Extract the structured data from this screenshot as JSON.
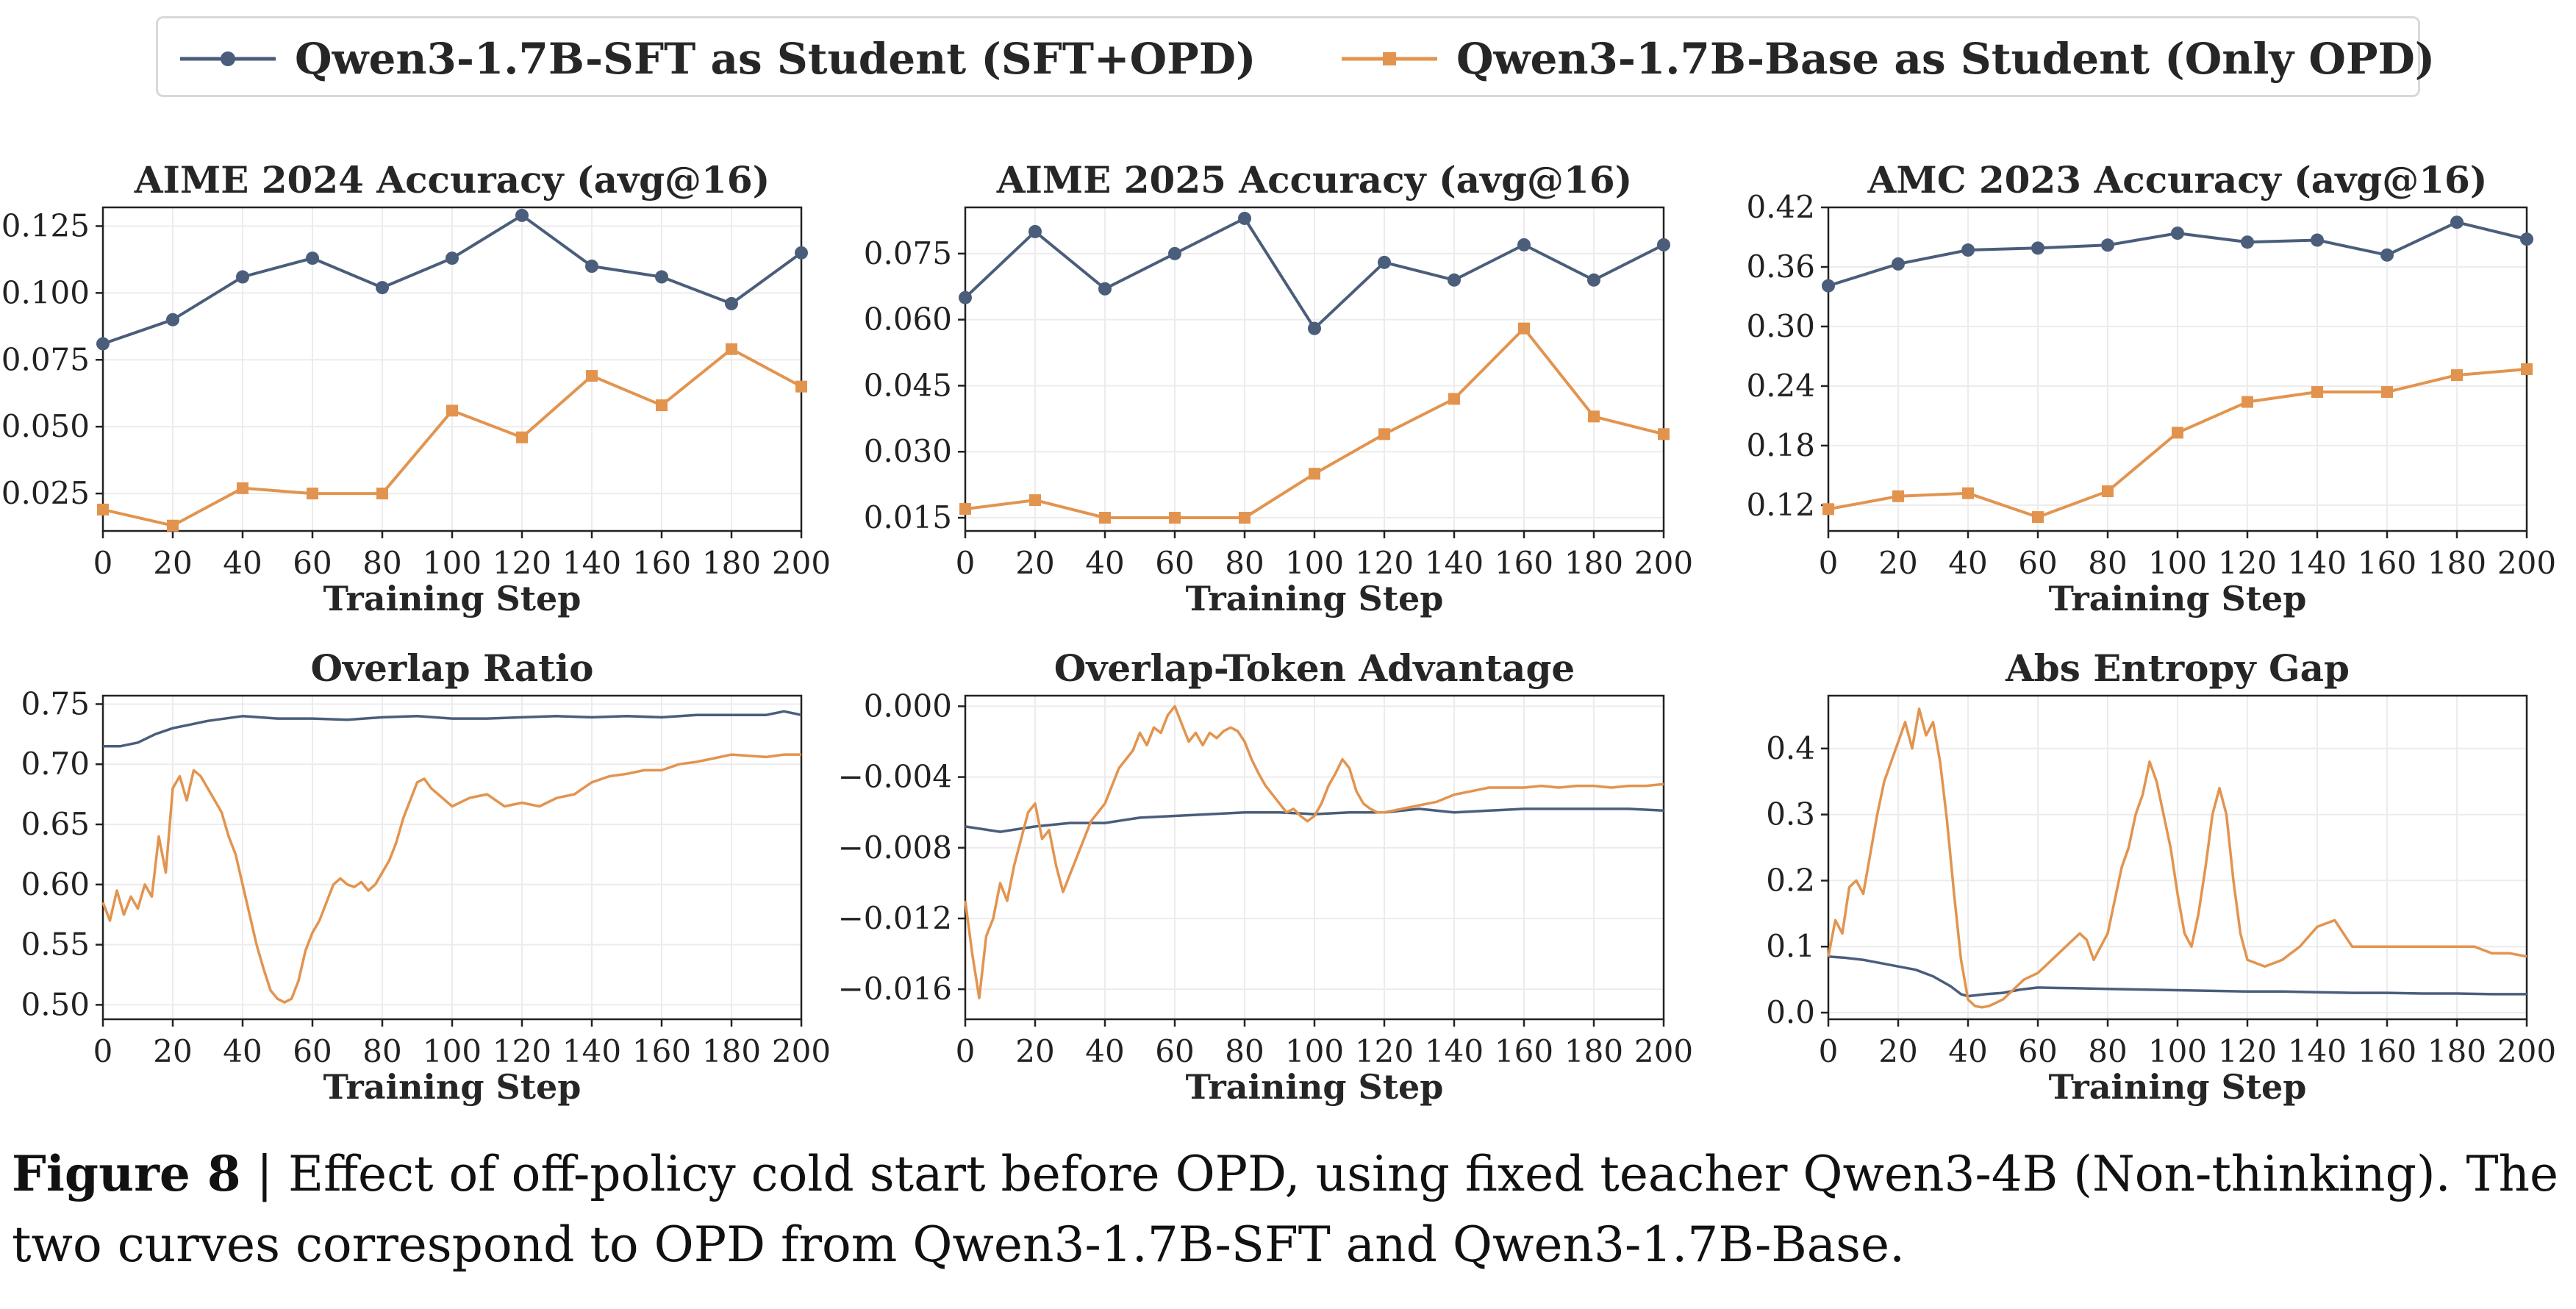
{
  "legend": {
    "sft_label": "Qwen3-1.7B-SFT as Student (SFT+OPD)",
    "base_label": "Qwen3-1.7B-Base as Student (Only OPD)"
  },
  "colors": {
    "sft": "#4a5e7b",
    "base": "#e2944f",
    "grid": "#ececec",
    "axis": "#222222"
  },
  "caption": {
    "label": "Figure 8",
    "separator": " | ",
    "text": "Effect of off-policy cold start before OPD, using fixed teacher Qwen3-4B (Non-thinking). The two curves correspond to OPD from Qwen3-1.7B-SFT and Qwen3-1.7B-Base."
  },
  "chart_data": [
    {
      "id": "aime2024",
      "type": "line",
      "title": "AIME 2024 Accuracy (avg@16)",
      "xlabel": "Training Step",
      "ylabel": "",
      "xlim": [
        0,
        200
      ],
      "ylim": [
        0.011,
        0.132
      ],
      "xticks": [
        0,
        20,
        40,
        60,
        80,
        100,
        120,
        140,
        160,
        180,
        200
      ],
      "yticks": [
        0.025,
        0.05,
        0.075,
        0.1,
        0.125
      ],
      "ytick_labels": [
        "0.025",
        "0.050",
        "0.075",
        "0.100",
        "0.125"
      ],
      "x": [
        0,
        20,
        40,
        60,
        80,
        100,
        120,
        140,
        160,
        180,
        200
      ],
      "series": [
        {
          "name": "Qwen3-1.7B-SFT as Student (SFT+OPD)",
          "key": "sft",
          "marker": "circle",
          "values": [
            0.081,
            0.09,
            0.106,
            0.113,
            0.102,
            0.113,
            0.129,
            0.11,
            0.106,
            0.096,
            0.115
          ]
        },
        {
          "name": "Qwen3-1.7B-Base as Student (Only OPD)",
          "key": "base",
          "marker": "square",
          "values": [
            0.019,
            0.013,
            0.027,
            0.025,
            0.025,
            0.056,
            0.046,
            0.069,
            0.058,
            0.079,
            0.065
          ]
        }
      ]
    },
    {
      "id": "aime2025",
      "type": "line",
      "title": "AIME 2025 Accuracy (avg@16)",
      "xlabel": "Training Step",
      "ylabel": "",
      "xlim": [
        0,
        200
      ],
      "ylim": [
        0.012,
        0.0855
      ],
      "xticks": [
        0,
        20,
        40,
        60,
        80,
        100,
        120,
        140,
        160,
        180,
        200
      ],
      "yticks": [
        0.015,
        0.03,
        0.045,
        0.06,
        0.075
      ],
      "ytick_labels": [
        "0.015",
        "0.030",
        "0.045",
        "0.060",
        "0.075"
      ],
      "x": [
        0,
        20,
        40,
        60,
        80,
        100,
        120,
        140,
        160,
        180,
        200
      ],
      "series": [
        {
          "name": "Qwen3-1.7B-SFT as Student (SFT+OPD)",
          "key": "sft",
          "marker": "circle",
          "values": [
            0.065,
            0.08,
            0.067,
            0.075,
            0.083,
            0.058,
            0.073,
            0.069,
            0.077,
            0.069,
            0.077
          ]
        },
        {
          "name": "Qwen3-1.7B-Base as Student (Only OPD)",
          "key": "base",
          "marker": "square",
          "values": [
            0.017,
            0.019,
            0.015,
            0.015,
            0.015,
            0.025,
            0.034,
            0.042,
            0.058,
            0.038,
            0.034
          ]
        }
      ]
    },
    {
      "id": "amc2023",
      "type": "line",
      "title": "AMC 2023 Accuracy (avg@16)",
      "xlabel": "Training Step",
      "ylabel": "",
      "xlim": [
        0,
        200
      ],
      "ylim": [
        0.094,
        0.42
      ],
      "xticks": [
        0,
        20,
        40,
        60,
        80,
        100,
        120,
        140,
        160,
        180,
        200
      ],
      "yticks": [
        0.12,
        0.18,
        0.24,
        0.3,
        0.36,
        0.42
      ],
      "ytick_labels": [
        "0.12",
        "0.18",
        "0.24",
        "0.30",
        "0.36",
        "0.42"
      ],
      "x": [
        0,
        20,
        40,
        60,
        80,
        100,
        120,
        140,
        160,
        180,
        200
      ],
      "series": [
        {
          "name": "Qwen3-1.7B-SFT as Student (SFT+OPD)",
          "key": "sft",
          "marker": "circle",
          "values": [
            0.341,
            0.363,
            0.377,
            0.379,
            0.382,
            0.394,
            0.385,
            0.387,
            0.372,
            0.405,
            0.388
          ]
        },
        {
          "name": "Qwen3-1.7B-Base as Student (Only OPD)",
          "key": "base",
          "marker": "square",
          "values": [
            0.116,
            0.129,
            0.132,
            0.108,
            0.134,
            0.193,
            0.224,
            0.234,
            0.234,
            0.251,
            0.257
          ]
        }
      ]
    },
    {
      "id": "overlap_ratio",
      "type": "line",
      "title": "Overlap Ratio",
      "xlabel": "Training Step",
      "ylabel": "",
      "xlim": [
        0,
        200
      ],
      "ylim": [
        0.488,
        0.757
      ],
      "xticks": [
        0,
        20,
        40,
        60,
        80,
        100,
        120,
        140,
        160,
        180,
        200
      ],
      "yticks": [
        0.5,
        0.55,
        0.6,
        0.65,
        0.7,
        0.75
      ],
      "ytick_labels": [
        "0.50",
        "0.55",
        "0.60",
        "0.65",
        "0.70",
        "0.75"
      ],
      "series": [
        {
          "name": "Qwen3-1.7B-SFT as Student (SFT+OPD)",
          "key": "sft",
          "x": [
            0,
            5,
            10,
            15,
            20,
            25,
            30,
            40,
            50,
            60,
            70,
            80,
            90,
            100,
            110,
            120,
            130,
            140,
            150,
            160,
            170,
            180,
            190,
            195,
            200
          ],
          "values": [
            0.715,
            0.715,
            0.718,
            0.725,
            0.73,
            0.733,
            0.736,
            0.74,
            0.738,
            0.738,
            0.737,
            0.739,
            0.74,
            0.738,
            0.738,
            0.739,
            0.74,
            0.739,
            0.74,
            0.739,
            0.741,
            0.741,
            0.741,
            0.744,
            0.741
          ]
        },
        {
          "name": "Qwen3-1.7B-Base as Student (Only OPD)",
          "key": "base",
          "x": [
            0,
            2,
            4,
            6,
            8,
            10,
            12,
            14,
            16,
            18,
            20,
            22,
            24,
            26,
            28,
            30,
            32,
            34,
            36,
            38,
            40,
            42,
            44,
            46,
            48,
            50,
            52,
            54,
            56,
            58,
            60,
            62,
            64,
            66,
            68,
            70,
            72,
            74,
            76,
            78,
            80,
            82,
            84,
            86,
            88,
            90,
            92,
            94,
            96,
            98,
            100,
            105,
            110,
            115,
            120,
            125,
            130,
            135,
            140,
            145,
            150,
            155,
            160,
            165,
            170,
            175,
            180,
            185,
            190,
            195,
            200
          ],
          "values": [
            0.585,
            0.57,
            0.595,
            0.575,
            0.59,
            0.58,
            0.6,
            0.59,
            0.64,
            0.61,
            0.68,
            0.69,
            0.67,
            0.695,
            0.69,
            0.68,
            0.67,
            0.66,
            0.64,
            0.625,
            0.6,
            0.575,
            0.55,
            0.53,
            0.512,
            0.505,
            0.502,
            0.505,
            0.52,
            0.545,
            0.56,
            0.57,
            0.585,
            0.6,
            0.605,
            0.6,
            0.598,
            0.602,
            0.595,
            0.6,
            0.61,
            0.62,
            0.635,
            0.655,
            0.67,
            0.685,
            0.688,
            0.68,
            0.675,
            0.67,
            0.665,
            0.672,
            0.675,
            0.665,
            0.668,
            0.665,
            0.672,
            0.675,
            0.685,
            0.69,
            0.692,
            0.695,
            0.695,
            0.7,
            0.702,
            0.705,
            0.708,
            0.707,
            0.706,
            0.708,
            0.708
          ]
        }
      ]
    },
    {
      "id": "overlap_token_advantage",
      "type": "line",
      "title": "Overlap-Token Advantage",
      "xlabel": "Training Step",
      "ylabel": "",
      "xlim": [
        0,
        200
      ],
      "ylim": [
        -0.0177,
        0.0006
      ],
      "xticks": [
        0,
        20,
        40,
        60,
        80,
        100,
        120,
        140,
        160,
        180,
        200
      ],
      "yticks": [
        -0.016,
        -0.012,
        -0.008,
        -0.004,
        0.0
      ],
      "ytick_labels": [
        "−0.016",
        "−0.012",
        "−0.008",
        "−0.004",
        "0.000"
      ],
      "series": [
        {
          "name": "Qwen3-1.7B-SFT as Student (SFT+OPD)",
          "key": "sft",
          "x": [
            0,
            10,
            20,
            30,
            40,
            50,
            60,
            70,
            80,
            90,
            100,
            110,
            120,
            130,
            140,
            150,
            160,
            170,
            180,
            190,
            200
          ],
          "values": [
            -0.0068,
            -0.0071,
            -0.0068,
            -0.0066,
            -0.0066,
            -0.0063,
            -0.0062,
            -0.0061,
            -0.006,
            -0.006,
            -0.0061,
            -0.006,
            -0.006,
            -0.0058,
            -0.006,
            -0.0059,
            -0.0058,
            -0.0058,
            -0.0058,
            -0.0058,
            -0.0059
          ]
        },
        {
          "name": "Qwen3-1.7B-Base as Student (Only OPD)",
          "key": "base",
          "x": [
            0,
            2,
            4,
            6,
            8,
            10,
            12,
            14,
            16,
            18,
            20,
            22,
            24,
            26,
            28,
            30,
            32,
            34,
            36,
            38,
            40,
            42,
            44,
            46,
            48,
            50,
            52,
            54,
            56,
            58,
            60,
            62,
            64,
            66,
            68,
            70,
            72,
            74,
            76,
            78,
            80,
            82,
            84,
            86,
            88,
            90,
            92,
            94,
            96,
            98,
            100,
            102,
            104,
            106,
            108,
            110,
            112,
            114,
            116,
            118,
            120,
            125,
            130,
            135,
            140,
            145,
            150,
            155,
            160,
            165,
            170,
            175,
            180,
            185,
            190,
            195,
            200
          ],
          "values": [
            -0.011,
            -0.014,
            -0.0165,
            -0.013,
            -0.012,
            -0.01,
            -0.011,
            -0.009,
            -0.0075,
            -0.006,
            -0.0055,
            -0.0075,
            -0.007,
            -0.009,
            -0.0105,
            -0.0095,
            -0.0085,
            -0.0075,
            -0.0065,
            -0.006,
            -0.0055,
            -0.0045,
            -0.0035,
            -0.003,
            -0.0025,
            -0.0015,
            -0.0022,
            -0.0012,
            -0.0015,
            -0.0005,
            0.0,
            -0.001,
            -0.002,
            -0.0015,
            -0.0022,
            -0.0015,
            -0.0018,
            -0.0014,
            -0.0012,
            -0.0014,
            -0.002,
            -0.003,
            -0.0038,
            -0.0045,
            -0.005,
            -0.0055,
            -0.006,
            -0.0058,
            -0.0062,
            -0.0065,
            -0.0062,
            -0.0055,
            -0.0045,
            -0.0038,
            -0.003,
            -0.0035,
            -0.0048,
            -0.0055,
            -0.0058,
            -0.006,
            -0.006,
            -0.0058,
            -0.0056,
            -0.0054,
            -0.005,
            -0.0048,
            -0.0046,
            -0.0046,
            -0.0046,
            -0.0045,
            -0.0046,
            -0.0045,
            -0.0045,
            -0.0046,
            -0.0045,
            -0.0045,
            -0.0044
          ]
        }
      ]
    },
    {
      "id": "abs_entropy_gap",
      "type": "line",
      "title": "Abs Entropy Gap",
      "xlabel": "Training Step",
      "ylabel": "",
      "xlim": [
        0,
        200
      ],
      "ylim": [
        -0.01,
        0.48
      ],
      "xticks": [
        0,
        20,
        40,
        60,
        80,
        100,
        120,
        140,
        160,
        180,
        200
      ],
      "yticks": [
        0.0,
        0.1,
        0.2,
        0.3,
        0.4
      ],
      "ytick_labels": [
        "0.0",
        "0.1",
        "0.2",
        "0.3",
        "0.4"
      ],
      "series": [
        {
          "name": "Qwen3-1.7B-SFT as Student (SFT+OPD)",
          "key": "sft",
          "x": [
            0,
            5,
            10,
            15,
            20,
            25,
            30,
            35,
            38,
            40,
            45,
            50,
            55,
            60,
            70,
            80,
            90,
            100,
            110,
            120,
            130,
            140,
            150,
            160,
            170,
            180,
            190,
            200
          ],
          "values": [
            0.085,
            0.083,
            0.08,
            0.075,
            0.07,
            0.065,
            0.055,
            0.04,
            0.028,
            0.025,
            0.028,
            0.03,
            0.035,
            0.038,
            0.037,
            0.036,
            0.035,
            0.034,
            0.033,
            0.032,
            0.032,
            0.031,
            0.03,
            0.03,
            0.029,
            0.029,
            0.028,
            0.028
          ]
        },
        {
          "name": "Qwen3-1.7B-Base as Student (Only OPD)",
          "key": "base",
          "x": [
            0,
            2,
            4,
            6,
            8,
            10,
            12,
            14,
            16,
            18,
            20,
            22,
            24,
            26,
            28,
            30,
            32,
            34,
            36,
            38,
            40,
            42,
            44,
            46,
            48,
            50,
            52,
            54,
            56,
            58,
            60,
            62,
            64,
            66,
            68,
            70,
            72,
            74,
            76,
            78,
            80,
            82,
            84,
            86,
            88,
            90,
            92,
            94,
            96,
            98,
            100,
            102,
            104,
            106,
            108,
            110,
            112,
            114,
            116,
            118,
            120,
            125,
            130,
            135,
            140,
            145,
            150,
            155,
            160,
            165,
            170,
            175,
            180,
            185,
            190,
            195,
            200
          ],
          "values": [
            0.085,
            0.14,
            0.12,
            0.19,
            0.2,
            0.18,
            0.24,
            0.3,
            0.35,
            0.38,
            0.41,
            0.44,
            0.4,
            0.46,
            0.42,
            0.44,
            0.38,
            0.29,
            0.18,
            0.08,
            0.02,
            0.01,
            0.008,
            0.01,
            0.015,
            0.02,
            0.03,
            0.04,
            0.05,
            0.055,
            0.06,
            0.07,
            0.08,
            0.09,
            0.1,
            0.11,
            0.12,
            0.11,
            0.08,
            0.1,
            0.12,
            0.17,
            0.22,
            0.25,
            0.3,
            0.33,
            0.38,
            0.35,
            0.3,
            0.25,
            0.18,
            0.12,
            0.1,
            0.15,
            0.22,
            0.3,
            0.34,
            0.3,
            0.2,
            0.12,
            0.08,
            0.07,
            0.08,
            0.1,
            0.13,
            0.14,
            0.1,
            0.1,
            0.1,
            0.1,
            0.1,
            0.1,
            0.1,
            0.1,
            0.09,
            0.09,
            0.085
          ]
        }
      ]
    }
  ]
}
